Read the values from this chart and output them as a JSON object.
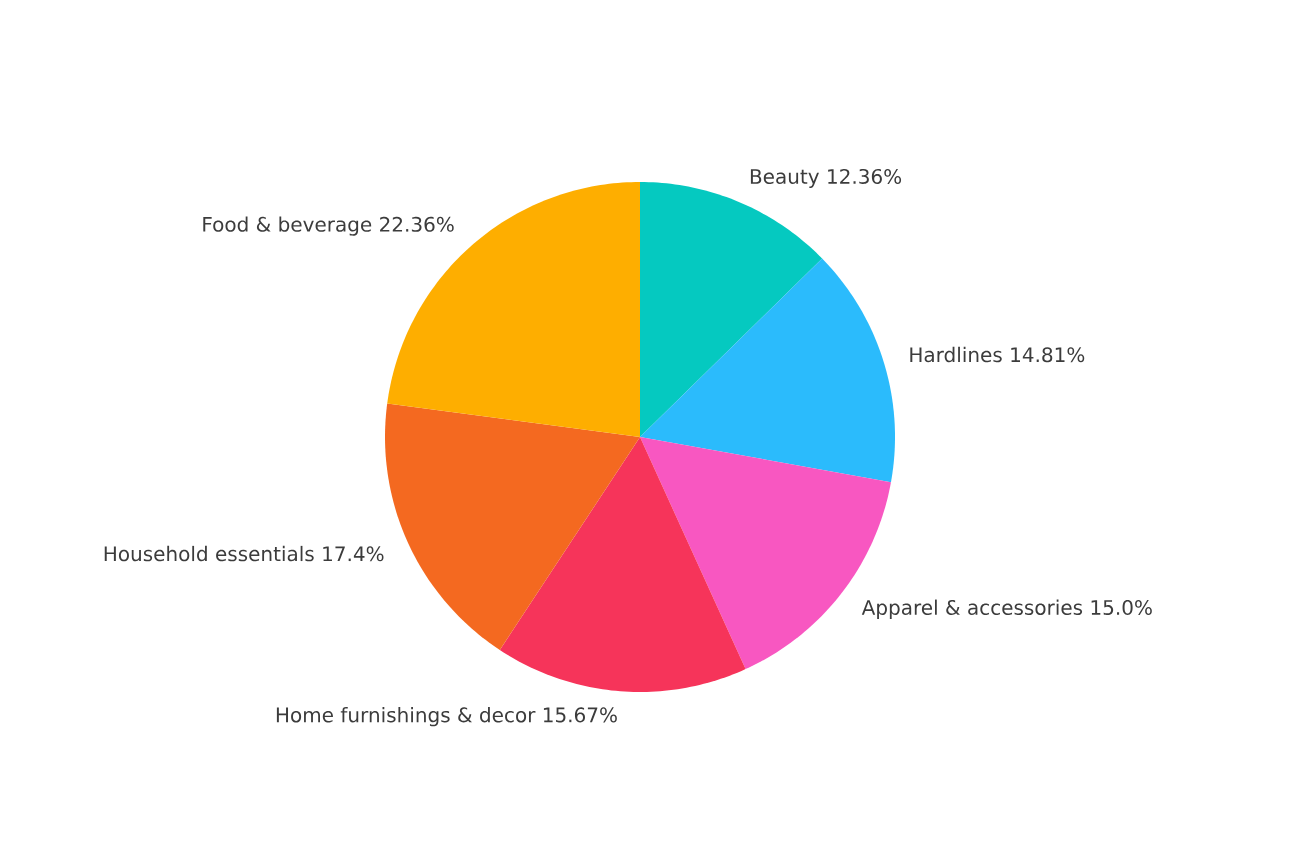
{
  "chart_data": {
    "type": "pie",
    "categories": [
      "Beauty",
      "Hardlines",
      "Apparel & accessories",
      "Home furnishings & decor",
      "Household essentials",
      "Food & beverage"
    ],
    "values": [
      12.36,
      14.81,
      15.0,
      15.67,
      17.4,
      22.36
    ],
    "value_labels": [
      "12.36%",
      "14.81%",
      "15.0%",
      "15.67%",
      "17.4%",
      "22.36%"
    ],
    "colors": [
      "#05c9c0",
      "#2bbbfc",
      "#f857c1",
      "#f6345a",
      "#f46920",
      "#feae00"
    ]
  }
}
